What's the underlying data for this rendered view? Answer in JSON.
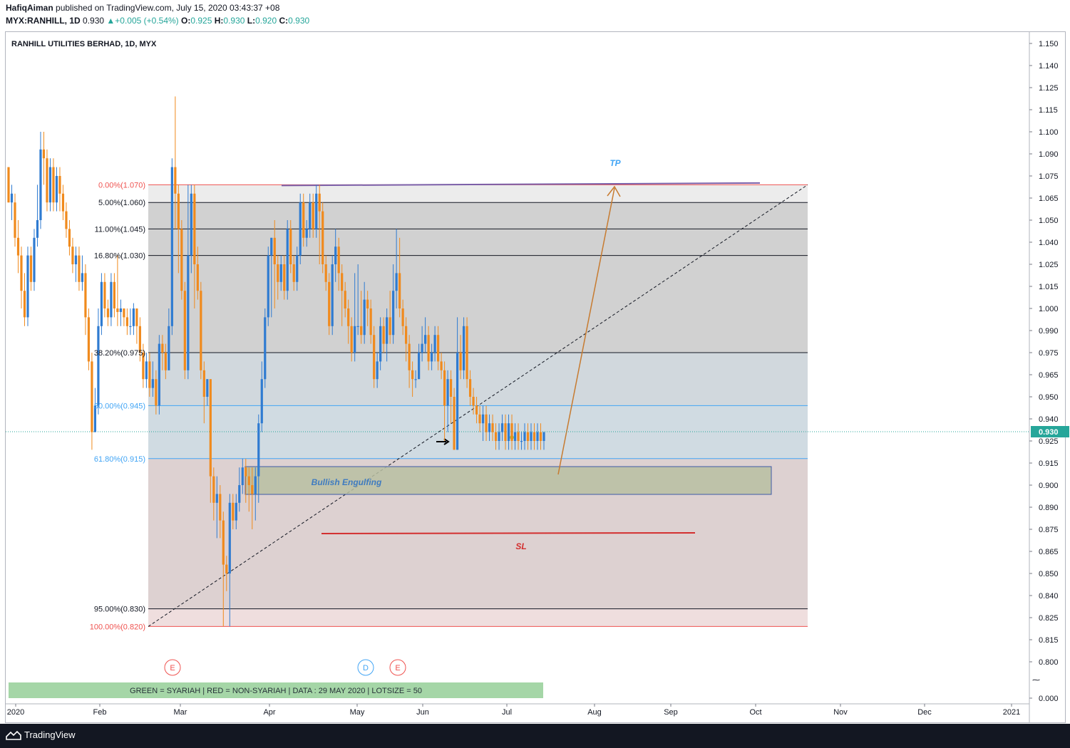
{
  "header": {
    "author": "HafiqAiman",
    "published_text": "published on TradingView.com, July 15, 2020 03:43:37 +08",
    "symbol": "MYX:RANHILL, 1D",
    "last": "0.930",
    "change": "+0.005 (+0.54%)",
    "o_label": "O:",
    "o": "0.925",
    "h_label": "H:",
    "h": "0.930",
    "l_label": "L:",
    "l": "0.920",
    "c_label": "C:",
    "c": "0.930"
  },
  "footer": {
    "brand": "TradingView"
  },
  "colors": {
    "up": "#2f7bd1",
    "down": "#f08a1d",
    "fib_red": "#ef5350",
    "fib_blue": "#42a5f5",
    "tp": "#42a5f5",
    "sl": "#d32f2f",
    "arrow": "#c77b30",
    "banner_bg": "#a5d6a7"
  },
  "chart_data": {
    "type": "candlestick",
    "title": "RANHILL UTILITIES BERHAD, 1D, MYX",
    "current_price": "0.930",
    "ylim": [
      0.795,
      1.155
    ],
    "y_ticks": [
      "1.150",
      "1.140",
      "1.125",
      "1.115",
      "1.100",
      "1.090",
      "1.075",
      "1.065",
      "1.050",
      "1.040",
      "1.025",
      "1.015",
      "1.000",
      "0.990",
      "0.975",
      "0.965",
      "0.950",
      "0.940",
      "0.925",
      "0.915",
      "0.900",
      "0.890",
      "0.875",
      "0.865",
      "0.850",
      "0.840",
      "0.825",
      "0.815",
      "0.800"
    ],
    "y_bottom_tick": "0.000",
    "x_ticks": [
      "2020",
      "Feb",
      "Mar",
      "Apr",
      "May",
      "Jun",
      "Jul",
      "Aug",
      "Sep",
      "Oct",
      "Nov",
      "Dec",
      "2021"
    ],
    "fib_levels": [
      {
        "label": "0.00%(1.070)",
        "value": 1.07,
        "color": "red"
      },
      {
        "label": "5.00%(1.060)",
        "value": 1.06,
        "color": "black"
      },
      {
        "label": "11.00%(1.045)",
        "value": 1.045,
        "color": "black"
      },
      {
        "label": "16.80%(1.030)",
        "value": 1.03,
        "color": "black"
      },
      {
        "label": "38.20%(0.975)",
        "value": 0.975,
        "color": "black"
      },
      {
        "label": "50.00%(0.945)",
        "value": 0.945,
        "color": "blue"
      },
      {
        "label": "61.80%(0.915)",
        "value": 0.915,
        "color": "blue"
      },
      {
        "label": "95.00%(0.830)",
        "value": 0.83,
        "color": "black"
      },
      {
        "label": "100.00%(0.820)",
        "value": 0.82,
        "color": "red"
      }
    ],
    "annotations": {
      "tp": "TP",
      "sl": "SL",
      "zone": "Bullish Engulfing"
    },
    "events": [
      "E",
      "D",
      "E"
    ],
    "banner": "GREEN = SYARIAH   |   RED = NON-SYARIAH   |   DATA : 29 MAY 2020   |   LOTSIZE = 50",
    "candles": [
      [
        1.08,
        1.06,
        1.08,
        1.06
      ],
      [
        1.06,
        1.065,
        1.07,
        1.05
      ],
      [
        1.06,
        1.04,
        1.065,
        1.035
      ],
      [
        1.04,
        1.03,
        1.05,
        1.02
      ],
      [
        1.03,
        1.01,
        1.035,
        1.0
      ],
      [
        1.01,
        0.995,
        1.02,
        0.99
      ],
      [
        0.995,
        1.03,
        1.035,
        0.99
      ],
      [
        1.03,
        1.015,
        1.035,
        1.01
      ],
      [
        1.015,
        1.04,
        1.045,
        1.01
      ],
      [
        1.04,
        1.05,
        1.07,
        1.035
      ],
      [
        1.05,
        1.09,
        1.1,
        1.045
      ],
      [
        1.09,
        1.085,
        1.1,
        1.07
      ],
      [
        1.085,
        1.06,
        1.09,
        1.055
      ],
      [
        1.06,
        1.08,
        1.085,
        1.055
      ],
      [
        1.08,
        1.06,
        1.085,
        1.055
      ],
      [
        1.06,
        1.075,
        1.08,
        1.055
      ],
      [
        1.075,
        1.065,
        1.08,
        1.055
      ],
      [
        1.065,
        1.055,
        1.07,
        1.05
      ],
      [
        1.055,
        1.045,
        1.06,
        1.04
      ],
      [
        1.045,
        1.035,
        1.05,
        1.03
      ],
      [
        1.035,
        1.025,
        1.04,
        1.02
      ],
      [
        1.025,
        1.03,
        1.035,
        1.015
      ],
      [
        1.03,
        1.015,
        1.035,
        1.01
      ],
      [
        1.015,
        1.02,
        1.03,
        1.01
      ],
      [
        1.02,
        0.995,
        1.025,
        0.985
      ],
      [
        0.995,
        0.97,
        1.0,
        0.965
      ],
      [
        0.97,
        0.93,
        0.975,
        0.92
      ],
      [
        0.93,
        0.945,
        0.955,
        0.93
      ],
      [
        0.945,
        0.99,
        1.0,
        0.94
      ],
      [
        0.99,
        1.015,
        1.02,
        0.985
      ],
      [
        1.015,
        1.0,
        1.02,
        0.995
      ],
      [
        1.0,
        0.995,
        1.005,
        0.99
      ],
      [
        0.995,
        1.015,
        1.02,
        0.99
      ],
      [
        1.015,
        1.0,
        1.02,
        0.995
      ],
      [
        1.0,
        0.998,
        1.03,
        0.99
      ],
      [
        0.998,
        1.0,
        1.005,
        0.99
      ],
      [
        1.0,
        0.995,
        1.0,
        0.99
      ],
      [
        0.995,
        0.99,
        1.0,
        0.985
      ],
      [
        0.99,
        0.99,
        1.0,
        0.985
      ],
      [
        0.99,
        1.0,
        1.003,
        0.985
      ],
      [
        1.0,
        0.99,
        1.0,
        0.98
      ],
      [
        0.99,
        0.975,
        0.995,
        0.97
      ],
      [
        0.975,
        0.96,
        0.98,
        0.955
      ],
      [
        0.96,
        0.97,
        0.975,
        0.955
      ],
      [
        0.97,
        0.955,
        0.975,
        0.95
      ],
      [
        0.955,
        0.96,
        0.97,
        0.95
      ],
      [
        0.96,
        0.945,
        0.965,
        0.94
      ],
      [
        0.945,
        0.98,
        0.985,
        0.94
      ],
      [
        0.98,
        0.975,
        0.985,
        0.965
      ],
      [
        0.975,
        0.965,
        0.98,
        0.96
      ],
      [
        0.965,
        0.99,
        1.0,
        0.965
      ],
      [
        0.99,
        1.08,
        1.085,
        0.985
      ],
      [
        1.08,
        1.065,
        1.12,
        1.045
      ],
      [
        1.065,
        1.045,
        1.07,
        1.02
      ],
      [
        1.045,
        1.01,
        1.05,
        1.005
      ],
      [
        1.01,
        0.965,
        1.015,
        0.96
      ],
      [
        0.965,
        1.03,
        1.07,
        0.96
      ],
      [
        1.03,
        1.065,
        1.07,
        1.02
      ],
      [
        1.065,
        1.025,
        1.07,
        1.0
      ],
      [
        1.025,
        1.01,
        1.035,
        1.005
      ],
      [
        1.01,
        0.965,
        1.015,
        0.96
      ],
      [
        0.965,
        0.95,
        0.97,
        0.935
      ],
      [
        0.95,
        0.96,
        0.96,
        0.945
      ],
      [
        0.96,
        0.905,
        0.96,
        0.89
      ],
      [
        0.905,
        0.89,
        0.91,
        0.88
      ],
      [
        0.89,
        0.895,
        0.905,
        0.87
      ],
      [
        0.895,
        0.88,
        0.9,
        0.87
      ],
      [
        0.88,
        0.855,
        0.885,
        0.82
      ],
      [
        0.855,
        0.85,
        0.86,
        0.84
      ],
      [
        0.85,
        0.89,
        0.895,
        0.82
      ],
      [
        0.89,
        0.88,
        0.895,
        0.875
      ],
      [
        0.88,
        0.89,
        0.895,
        0.875
      ],
      [
        0.89,
        0.9,
        0.91,
        0.885
      ],
      [
        0.9,
        0.91,
        0.915,
        0.895
      ],
      [
        0.91,
        0.905,
        0.915,
        0.89
      ],
      [
        0.905,
        0.9,
        0.91,
        0.885
      ],
      [
        0.9,
        0.895,
        0.91,
        0.875
      ],
      [
        0.895,
        0.905,
        0.91,
        0.88
      ],
      [
        0.905,
        0.935,
        0.94,
        0.89
      ],
      [
        0.935,
        0.96,
        0.97,
        0.93
      ],
      [
        0.96,
        0.995,
        1.0,
        0.955
      ],
      [
        0.995,
        1.03,
        1.035,
        0.99
      ],
      [
        1.03,
        1.04,
        1.04,
        0.995
      ],
      [
        1.04,
        1.025,
        1.05,
        1.0
      ],
      [
        1.025,
        1.015,
        1.03,
        1.005
      ],
      [
        1.015,
        1.025,
        1.03,
        1.01
      ],
      [
        1.025,
        1.01,
        1.03,
        1.005
      ],
      [
        1.01,
        1.045,
        1.05,
        1.005
      ],
      [
        1.045,
        1.025,
        1.05,
        1.02
      ],
      [
        1.025,
        1.015,
        1.03,
        1.01
      ],
      [
        1.015,
        1.03,
        1.035,
        1.01
      ],
      [
        1.03,
        1.06,
        1.065,
        1.025
      ],
      [
        1.06,
        1.04,
        1.065,
        1.035
      ],
      [
        1.04,
        1.045,
        1.05,
        1.035
      ],
      [
        1.045,
        1.06,
        1.065,
        1.04
      ],
      [
        1.06,
        1.045,
        1.065,
        1.04
      ],
      [
        1.045,
        1.065,
        1.07,
        1.04
      ],
      [
        1.065,
        1.055,
        1.07,
        1.025
      ],
      [
        1.055,
        1.025,
        1.06,
        1.02
      ],
      [
        1.025,
        1.015,
        1.03,
        1.01
      ],
      [
        1.015,
        0.99,
        1.02,
        0.985
      ],
      [
        0.99,
        1.025,
        1.03,
        0.985
      ],
      [
        1.025,
        1.035,
        1.045,
        1.015
      ],
      [
        1.035,
        1.02,
        1.04,
        1.01
      ],
      [
        1.02,
        1.01,
        1.025,
        0.99
      ],
      [
        1.01,
        1.0,
        1.015,
        0.995
      ],
      [
        1.0,
        0.99,
        1.005,
        0.98
      ],
      [
        0.99,
        0.975,
        0.995,
        0.97
      ],
      [
        0.975,
        0.99,
        1.02,
        0.97
      ],
      [
        0.99,
        0.99,
        1.025,
        0.985
      ],
      [
        0.99,
        0.985,
        1.01,
        0.98
      ],
      [
        0.985,
        1.005,
        1.015,
        0.98
      ],
      [
        1.005,
        1.0,
        1.01,
        0.99
      ],
      [
        1.0,
        0.985,
        1.005,
        0.98
      ],
      [
        0.985,
        0.96,
        0.99,
        0.955
      ],
      [
        0.96,
        0.97,
        0.975,
        0.955
      ],
      [
        0.97,
        0.99,
        0.995,
        0.965
      ],
      [
        0.99,
        0.98,
        0.995,
        0.975
      ],
      [
        0.98,
        0.995,
        1.0,
        0.97
      ],
      [
        0.995,
        0.985,
        1.01,
        0.98
      ],
      [
        0.985,
        1.01,
        1.025,
        0.98
      ],
      [
        1.01,
        1.02,
        1.045,
        1.0
      ],
      [
        1.02,
        1.0,
        1.04,
        0.995
      ],
      [
        1.0,
        0.99,
        1.005,
        0.985
      ],
      [
        0.99,
        0.98,
        0.995,
        0.97
      ],
      [
        0.98,
        0.965,
        0.985,
        0.955
      ],
      [
        0.965,
        0.96,
        0.97,
        0.95
      ],
      [
        0.96,
        0.96,
        0.965,
        0.955
      ],
      [
        0.96,
        0.975,
        0.98,
        0.96
      ],
      [
        0.975,
        0.98,
        0.99,
        0.97
      ],
      [
        0.98,
        0.985,
        0.995,
        0.975
      ],
      [
        0.985,
        0.97,
        0.99,
        0.965
      ],
      [
        0.97,
        0.975,
        0.98,
        0.965
      ],
      [
        0.975,
        0.985,
        0.99,
        0.97
      ],
      [
        0.985,
        0.97,
        0.99,
        0.965
      ],
      [
        0.97,
        0.965,
        0.975,
        0.96
      ],
      [
        0.965,
        0.945,
        0.97,
        0.925
      ],
      [
        0.945,
        0.96,
        0.965,
        0.93
      ],
      [
        0.96,
        0.95,
        0.965,
        0.935
      ],
      [
        0.95,
        0.92,
        0.955,
        0.92
      ],
      [
        0.92,
        0.975,
        0.995,
        0.92
      ],
      [
        0.975,
        0.965,
        0.985,
        0.96
      ],
      [
        0.965,
        0.99,
        0.995,
        0.96
      ],
      [
        0.99,
        0.96,
        0.995,
        0.955
      ],
      [
        0.96,
        0.95,
        0.965,
        0.945
      ],
      [
        0.95,
        0.945,
        0.955,
        0.94
      ],
      [
        0.945,
        0.94,
        0.95,
        0.935
      ],
      [
        0.94,
        0.935,
        0.945,
        0.93
      ],
      [
        0.935,
        0.94,
        0.945,
        0.925
      ],
      [
        0.94,
        0.93,
        0.945,
        0.925
      ],
      [
        0.93,
        0.935,
        0.94,
        0.925
      ],
      [
        0.935,
        0.93,
        0.94,
        0.925
      ],
      [
        0.93,
        0.925,
        0.935,
        0.92
      ],
      [
        0.925,
        0.93,
        0.935,
        0.92
      ],
      [
        0.93,
        0.935,
        0.94,
        0.925
      ],
      [
        0.935,
        0.925,
        0.94,
        0.92
      ],
      [
        0.925,
        0.935,
        0.94,
        0.92
      ],
      [
        0.935,
        0.925,
        0.94,
        0.92
      ],
      [
        0.925,
        0.93,
        0.935,
        0.92
      ],
      [
        0.93,
        0.925,
        0.935,
        0.92
      ],
      [
        0.925,
        0.925,
        0.93,
        0.92
      ],
      [
        0.925,
        0.93,
        0.935,
        0.92
      ],
      [
        0.93,
        0.925,
        0.935,
        0.92
      ],
      [
        0.925,
        0.93,
        0.935,
        0.92
      ],
      [
        0.93,
        0.925,
        0.935,
        0.92
      ],
      [
        0.925,
        0.93,
        0.935,
        0.92
      ],
      [
        0.93,
        0.925,
        0.935,
        0.92
      ],
      [
        0.925,
        0.93,
        0.93,
        0.92
      ]
    ]
  }
}
